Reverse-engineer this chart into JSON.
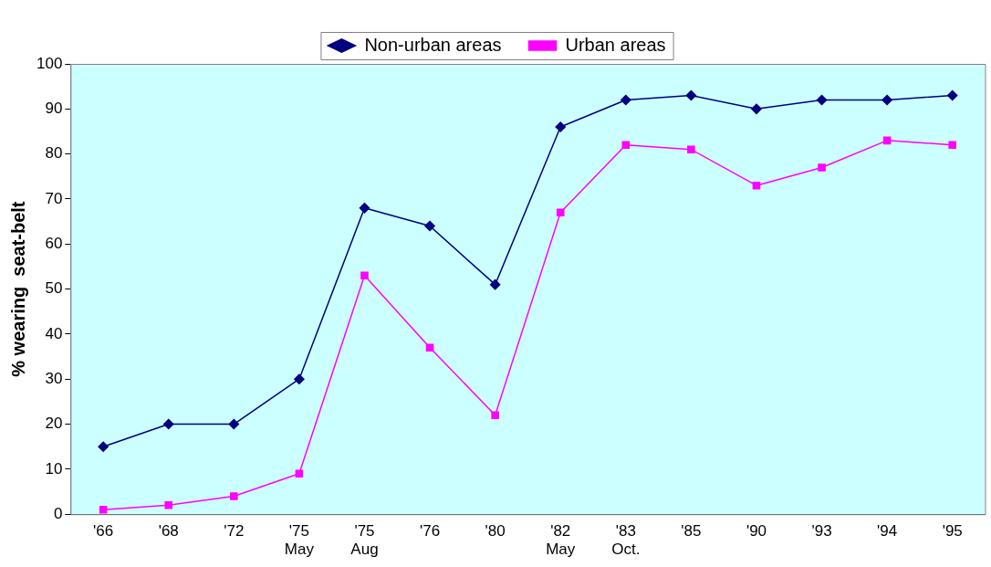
{
  "chart_data": {
    "type": "line",
    "ylabel": "% wearing  seat-belt",
    "categories": [
      "'66",
      "'68",
      "'72",
      "'75\nMay",
      "'75\nAug",
      "'76",
      "'80",
      "'82\nMay",
      "'83\nOct.",
      "'85",
      "'90",
      "'93",
      "'94",
      "'95"
    ],
    "series": [
      {
        "name": "Non-urban areas",
        "color": "#000080",
        "marker": "diamond",
        "values": [
          15,
          20,
          20,
          30,
          68,
          64,
          51,
          86,
          92,
          93,
          90,
          92,
          92,
          93
        ]
      },
      {
        "name": "Urban areas",
        "color": "#ff00ff",
        "marker": "square",
        "values": [
          1,
          2,
          4,
          9,
          53,
          37,
          22,
          67,
          82,
          81,
          73,
          77,
          83,
          82
        ]
      }
    ],
    "ylim": [
      0,
      100
    ],
    "yticks": [
      0,
      10,
      20,
      30,
      40,
      50,
      60,
      70,
      80,
      90,
      100
    ],
    "grid": false,
    "legend": "top",
    "line_style": "solid"
  }
}
